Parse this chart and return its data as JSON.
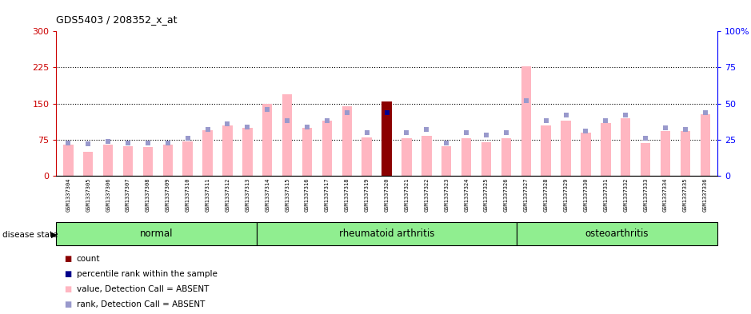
{
  "title": "GDS5403 / 208352_x_at",
  "samples": [
    "GSM1337304",
    "GSM1337305",
    "GSM1337306",
    "GSM1337307",
    "GSM1337308",
    "GSM1337309",
    "GSM1337310",
    "GSM1337311",
    "GSM1337312",
    "GSM1337313",
    "GSM1337314",
    "GSM1337315",
    "GSM1337316",
    "GSM1337317",
    "GSM1337318",
    "GSM1337319",
    "GSM1337320",
    "GSM1337321",
    "GSM1337322",
    "GSM1337323",
    "GSM1337324",
    "GSM1337325",
    "GSM1337326",
    "GSM1337327",
    "GSM1337328",
    "GSM1337329",
    "GSM1337330",
    "GSM1337331",
    "GSM1337332",
    "GSM1337333",
    "GSM1337334",
    "GSM1337335",
    "GSM1337336"
  ],
  "values": [
    65,
    50,
    65,
    62,
    60,
    65,
    72,
    95,
    105,
    100,
    150,
    170,
    100,
    115,
    145,
    80,
    155,
    78,
    83,
    62,
    78,
    70,
    78,
    228,
    105,
    115,
    90,
    110,
    120,
    68,
    93,
    93,
    128
  ],
  "ranks": [
    23,
    22,
    24,
    23,
    23,
    23,
    26,
    32,
    36,
    34,
    46,
    38,
    34,
    38,
    44,
    30,
    44,
    30,
    32,
    23,
    30,
    28,
    30,
    52,
    38,
    42,
    31,
    38,
    42,
    26,
    33,
    32,
    44
  ],
  "highlighted_bar": 16,
  "highlighted_rank": 16,
  "groups": [
    {
      "label": "normal",
      "start": 0,
      "end": 10
    },
    {
      "label": "rheumatoid arthritis",
      "start": 10,
      "end": 23
    },
    {
      "label": "osteoarthritis",
      "start": 23,
      "end": 33
    }
  ],
  "group_colors": [
    "#B8F0B8",
    "#90EE90",
    "#90EE90"
  ],
  "group_color": "#90EE90",
  "bar_color_normal": "#FFB6C1",
  "bar_color_highlight": "#8B0000",
  "rank_color_normal": "#9999CC",
  "rank_color_highlight": "#00008B",
  "ylim_left": [
    0,
    300
  ],
  "ylim_right": [
    0,
    100
  ],
  "yticks_left": [
    0,
    75,
    150,
    225,
    300
  ],
  "yticks_right": [
    0,
    25,
    50,
    75,
    100
  ],
  "hlines": [
    75,
    150,
    225
  ],
  "disease_state_label": "disease state",
  "legend_items": [
    {
      "color": "#8B0000",
      "label": "count"
    },
    {
      "color": "#00008B",
      "label": "percentile rank within the sample"
    },
    {
      "color": "#FFB6C1",
      "label": "value, Detection Call = ABSENT"
    },
    {
      "color": "#9999CC",
      "label": "rank, Detection Call = ABSENT"
    }
  ]
}
